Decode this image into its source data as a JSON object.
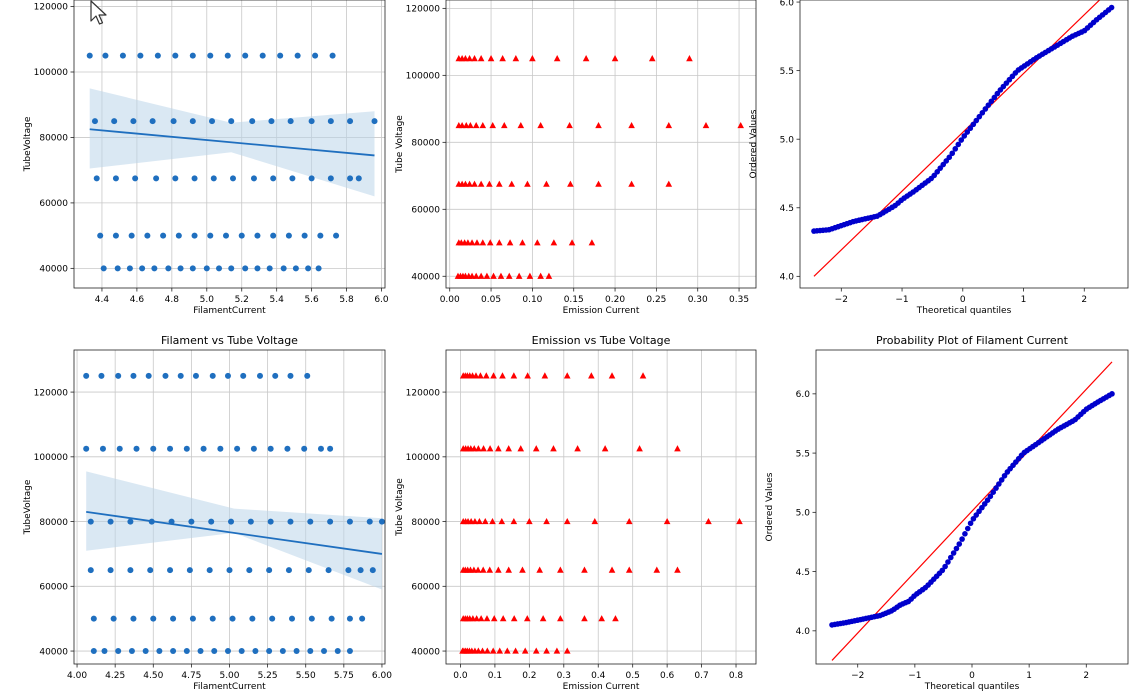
{
  "chart_data": [
    {
      "type": "scatter",
      "title": "",
      "xlabel": "FilamentCurrent",
      "ylabel": "TubeVoltage",
      "xlim": [
        4.24,
        6.02
      ],
      "ylim": [
        34000,
        122000
      ],
      "xticks": [
        4.4,
        4.6,
        4.8,
        5.0,
        5.2,
        5.4,
        5.6,
        5.8,
        6.0
      ],
      "xtick_labels": [
        "4.4",
        "4.6",
        "4.8",
        "5.0",
        "5.2",
        "5.4",
        "5.6",
        "5.8",
        "6.0"
      ],
      "yticks": [
        40000,
        60000,
        80000,
        100000,
        120000
      ],
      "ytick_labels": [
        "40000",
        "60000",
        "80000",
        "100000",
        "120000"
      ],
      "grid": true,
      "marker": "circle",
      "color": "#1f6fbf",
      "groups": [
        {
          "y": 105000,
          "x": [
            4.33,
            4.42,
            4.52,
            4.62,
            4.72,
            4.82,
            4.92,
            5.02,
            5.12,
            5.22,
            5.32,
            5.42,
            5.52,
            5.62,
            5.72
          ]
        },
        {
          "y": 85000,
          "x": [
            4.36,
            4.47,
            4.58,
            4.69,
            4.81,
            4.92,
            5.03,
            5.14,
            5.26,
            5.37,
            5.48,
            5.6,
            5.71,
            5.82,
            5.96
          ]
        },
        {
          "y": 67500,
          "x": [
            4.37,
            4.48,
            4.59,
            4.71,
            4.82,
            4.93,
            5.04,
            5.15,
            5.27,
            5.38,
            5.49,
            5.6,
            5.71,
            5.82,
            5.87
          ]
        },
        {
          "y": 50000,
          "x": [
            4.39,
            4.48,
            4.57,
            4.66,
            4.75,
            4.84,
            4.93,
            5.02,
            5.11,
            5.2,
            5.29,
            5.38,
            5.47,
            5.56,
            5.65,
            5.74
          ]
        },
        {
          "y": 40000,
          "x": [
            4.41,
            4.49,
            4.56,
            4.63,
            4.7,
            4.78,
            4.85,
            4.92,
            5.0,
            5.07,
            5.14,
            5.22,
            5.29,
            5.36,
            5.44,
            5.51,
            5.58,
            5.64
          ]
        }
      ],
      "regression": {
        "x": [
          4.33,
          5.96
        ],
        "y": [
          82500,
          74500
        ],
        "color": "#1f6fbf"
      },
      "ci_band": {
        "x": [
          4.33,
          5.14,
          5.96
        ],
        "upper": [
          95000,
          84500,
          88000
        ],
        "lower": [
          70500,
          75500,
          62000
        ],
        "color": "#bcd5ea"
      }
    },
    {
      "type": "scatter",
      "title": "",
      "xlabel": "Emission Current",
      "ylabel": "Tube Voltage",
      "xlim": [
        -0.0045,
        0.3705
      ],
      "ylim": [
        36500,
        122500
      ],
      "xticks": [
        0.0,
        0.05,
        0.1,
        0.15,
        0.2,
        0.25,
        0.3,
        0.35
      ],
      "xtick_labels": [
        "0.00",
        "0.05",
        "0.10",
        "0.15",
        "0.20",
        "0.25",
        "0.30",
        "0.35"
      ],
      "yticks": [
        40000,
        60000,
        80000,
        100000,
        120000
      ],
      "ytick_labels": [
        "40000",
        "60000",
        "80000",
        "100000",
        "120000"
      ],
      "grid": true,
      "marker": "triangle",
      "color": "#ff0000",
      "groups": [
        {
          "y": 105000,
          "x": [
            0.011,
            0.015,
            0.019,
            0.024,
            0.03,
            0.038,
            0.05,
            0.064,
            0.08,
            0.1,
            0.13,
            0.165,
            0.2,
            0.245,
            0.29
          ]
        },
        {
          "y": 85000,
          "x": [
            0.011,
            0.015,
            0.02,
            0.025,
            0.032,
            0.04,
            0.052,
            0.066,
            0.086,
            0.11,
            0.145,
            0.18,
            0.22,
            0.265,
            0.31,
            0.352
          ]
        },
        {
          "y": 67500,
          "x": [
            0.011,
            0.015,
            0.019,
            0.024,
            0.03,
            0.038,
            0.048,
            0.06,
            0.075,
            0.094,
            0.117,
            0.146,
            0.18,
            0.22,
            0.265
          ]
        },
        {
          "y": 50000,
          "x": [
            0.011,
            0.014,
            0.018,
            0.022,
            0.027,
            0.033,
            0.04,
            0.049,
            0.06,
            0.073,
            0.088,
            0.106,
            0.126,
            0.148,
            0.172
          ]
        },
        {
          "y": 40000,
          "x": [
            0.01,
            0.013,
            0.016,
            0.019,
            0.023,
            0.027,
            0.032,
            0.038,
            0.045,
            0.053,
            0.062,
            0.072,
            0.084,
            0.097,
            0.11,
            0.12
          ]
        }
      ]
    },
    {
      "type": "scatter",
      "title": "",
      "xlabel": "Theoretical quantiles",
      "ylabel": "Ordered Values",
      "xlim": [
        -2.68,
        2.72
      ],
      "ylim": [
        3.915,
        6.015
      ],
      "xticks": [
        -2,
        -1,
        0,
        1,
        2
      ],
      "xtick_labels": [
        "−2",
        "−1",
        "0",
        "1",
        "2"
      ],
      "yticks": [
        4.0,
        4.5,
        5.0,
        5.5,
        6.0
      ],
      "ytick_labels": [
        "4.0",
        "4.5",
        "5.0",
        "5.5",
        "6.0"
      ],
      "grid": false,
      "marker": "dot",
      "color": "#0000cc",
      "fit_line": {
        "x": [
          -2.45,
          2.45
        ],
        "y": [
          4.0,
          6.1
        ],
        "color": "#ff0000"
      },
      "points": {
        "x_range": [
          -2.45,
          2.45
        ],
        "count": 100,
        "anchors_x": [
          -2.45,
          -2.2,
          -2.0,
          -1.8,
          -1.6,
          -1.4,
          -1.25,
          -1.1,
          -1.0,
          -0.8,
          -0.5,
          -0.2,
          0.0,
          0.3,
          0.6,
          0.9,
          1.2,
          1.5,
          1.8,
          2.0,
          2.2,
          2.45
        ],
        "anchors_y": [
          4.33,
          4.34,
          4.37,
          4.4,
          4.42,
          4.44,
          4.48,
          4.52,
          4.56,
          4.62,
          4.72,
          4.88,
          5.01,
          5.18,
          5.35,
          5.5,
          5.59,
          5.67,
          5.75,
          5.79,
          5.87,
          5.96
        ]
      }
    },
    {
      "type": "scatter",
      "title": "Filament vs Tube Voltage",
      "xlabel": "FilamentCurrent",
      "ylabel": "TubeVoltage",
      "xlim": [
        3.98,
        6.02
      ],
      "ylim": [
        36000,
        133000
      ],
      "xticks": [
        4.0,
        4.25,
        4.5,
        4.75,
        5.0,
        5.25,
        5.5,
        5.75,
        6.0
      ],
      "xtick_labels": [
        "4.00",
        "4.25",
        "4.50",
        "4.75",
        "5.00",
        "5.25",
        "5.50",
        "5.75",
        "6.00"
      ],
      "yticks": [
        40000,
        60000,
        80000,
        100000,
        120000
      ],
      "ytick_labels": [
        "40000",
        "60000",
        "80000",
        "100000",
        "120000"
      ],
      "grid": true,
      "marker": "circle",
      "color": "#1f6fbf",
      "groups": [
        {
          "y": 125000,
          "x": [
            4.06,
            4.16,
            4.27,
            4.37,
            4.47,
            4.58,
            4.68,
            4.78,
            4.89,
            4.99,
            5.09,
            5.2,
            5.3,
            5.4,
            5.51
          ]
        },
        {
          "y": 102500,
          "x": [
            4.06,
            4.17,
            4.28,
            4.39,
            4.5,
            4.61,
            4.72,
            4.83,
            4.94,
            5.05,
            5.16,
            5.27,
            5.38,
            5.49,
            5.6,
            5.66
          ]
        },
        {
          "y": 80000,
          "x": [
            4.09,
            4.22,
            4.35,
            4.49,
            4.62,
            4.75,
            4.88,
            5.01,
            5.14,
            5.27,
            5.4,
            5.53,
            5.66,
            5.79,
            5.92,
            6.0
          ]
        },
        {
          "y": 65000,
          "x": [
            4.09,
            4.22,
            4.35,
            4.48,
            4.61,
            4.74,
            4.87,
            5.0,
            5.13,
            5.26,
            5.39,
            5.52,
            5.65,
            5.78,
            5.86,
            5.94
          ]
        },
        {
          "y": 50000,
          "x": [
            4.11,
            4.24,
            4.37,
            4.5,
            4.63,
            4.76,
            4.89,
            5.02,
            5.15,
            5.28,
            5.41,
            5.54,
            5.67,
            5.79,
            5.87
          ]
        },
        {
          "y": 40000,
          "x": [
            4.11,
            4.18,
            4.27,
            4.36,
            4.45,
            4.54,
            4.63,
            4.72,
            4.81,
            4.9,
            4.99,
            5.08,
            5.17,
            5.26,
            5.35,
            5.44,
            5.53,
            5.62,
            5.71,
            5.79
          ]
        }
      ],
      "regression": {
        "x": [
          4.06,
          6.0
        ],
        "y": [
          83000,
          70000
        ],
        "color": "#1f6fbf"
      },
      "ci_band": {
        "x": [
          4.06,
          5.03,
          6.0
        ],
        "upper": [
          95500,
          84000,
          81000
        ],
        "lower": [
          71000,
          76500,
          59000
        ],
        "color": "#bcd5ea"
      }
    },
    {
      "type": "scatter",
      "title": "Emission vs Tube Voltage",
      "xlabel": "Emission Current",
      "ylabel": "Tube Voltage",
      "xlim": [
        -0.042,
        0.858
      ],
      "ylim": [
        36000,
        133000
      ],
      "xticks": [
        0.0,
        0.1,
        0.2,
        0.3,
        0.4,
        0.5,
        0.6,
        0.7,
        0.8
      ],
      "xtick_labels": [
        "0.0",
        "0.1",
        "0.2",
        "0.3",
        "0.4",
        "0.5",
        "0.6",
        "0.7",
        "0.8"
      ],
      "yticks": [
        40000,
        60000,
        80000,
        100000,
        120000
      ],
      "ytick_labels": [
        "40000",
        "60000",
        "80000",
        "100000",
        "120000"
      ],
      "grid": true,
      "marker": "triangle",
      "color": "#ff0000",
      "groups": [
        {
          "y": 125000,
          "x": [
            0.008,
            0.014,
            0.02,
            0.027,
            0.035,
            0.045,
            0.058,
            0.075,
            0.096,
            0.122,
            0.155,
            0.195,
            0.245,
            0.31,
            0.38,
            0.44,
            0.53
          ]
        },
        {
          "y": 102500,
          "x": [
            0.008,
            0.015,
            0.022,
            0.03,
            0.04,
            0.052,
            0.067,
            0.086,
            0.11,
            0.14,
            0.175,
            0.22,
            0.27,
            0.34,
            0.42,
            0.52,
            0.63
          ]
        },
        {
          "y": 80000,
          "x": [
            0.008,
            0.015,
            0.022,
            0.031,
            0.042,
            0.055,
            0.072,
            0.093,
            0.12,
            0.155,
            0.2,
            0.25,
            0.31,
            0.39,
            0.49,
            0.6,
            0.72,
            0.81
          ]
        },
        {
          "y": 65000,
          "x": [
            0.008,
            0.014,
            0.021,
            0.029,
            0.039,
            0.051,
            0.066,
            0.085,
            0.11,
            0.14,
            0.18,
            0.23,
            0.29,
            0.36,
            0.44,
            0.49,
            0.57,
            0.63
          ]
        },
        {
          "y": 50000,
          "x": [
            0.008,
            0.014,
            0.02,
            0.027,
            0.036,
            0.047,
            0.06,
            0.077,
            0.098,
            0.124,
            0.156,
            0.194,
            0.24,
            0.29,
            0.36,
            0.41,
            0.45
          ]
        },
        {
          "y": 40000,
          "x": [
            0.006,
            0.01,
            0.015,
            0.02,
            0.026,
            0.033,
            0.042,
            0.052,
            0.064,
            0.078,
            0.095,
            0.114,
            0.136,
            0.16,
            0.188,
            0.22,
            0.25,
            0.28,
            0.31
          ]
        }
      ]
    },
    {
      "type": "scatter",
      "title": "Probability Plot of Filament Current",
      "xlabel": "Theoretical quantiles",
      "ylabel": "Ordered Values",
      "xlim": [
        -2.73,
        2.73
      ],
      "ylim": [
        3.72,
        6.37
      ],
      "xticks": [
        -2,
        -1,
        0,
        1,
        2
      ],
      "xtick_labels": [
        "−2",
        "−1",
        "0",
        "1",
        "2"
      ],
      "yticks": [
        4.0,
        4.5,
        5.0,
        5.5,
        6.0
      ],
      "ytick_labels": [
        "4.0",
        "4.5",
        "5.0",
        "5.5",
        "6.0"
      ],
      "grid": false,
      "marker": "dot",
      "color": "#0000cc",
      "fit_line": {
        "x": [
          -2.45,
          2.45
        ],
        "y": [
          3.75,
          6.27
        ],
        "color": "#ff0000"
      },
      "points": {
        "x_range": [
          -2.45,
          2.45
        ],
        "count": 100,
        "anchors_x": [
          -2.45,
          -2.2,
          -2.0,
          -1.8,
          -1.6,
          -1.4,
          -1.25,
          -1.1,
          -1.0,
          -0.8,
          -0.5,
          -0.2,
          0.0,
          0.3,
          0.6,
          0.9,
          1.2,
          1.5,
          1.8,
          2.0,
          2.2,
          2.45
        ],
        "anchors_y": [
          4.05,
          4.07,
          4.09,
          4.11,
          4.13,
          4.17,
          4.22,
          4.25,
          4.3,
          4.37,
          4.52,
          4.75,
          4.93,
          5.12,
          5.33,
          5.5,
          5.6,
          5.7,
          5.78,
          5.87,
          5.93,
          6.0
        ]
      }
    }
  ]
}
